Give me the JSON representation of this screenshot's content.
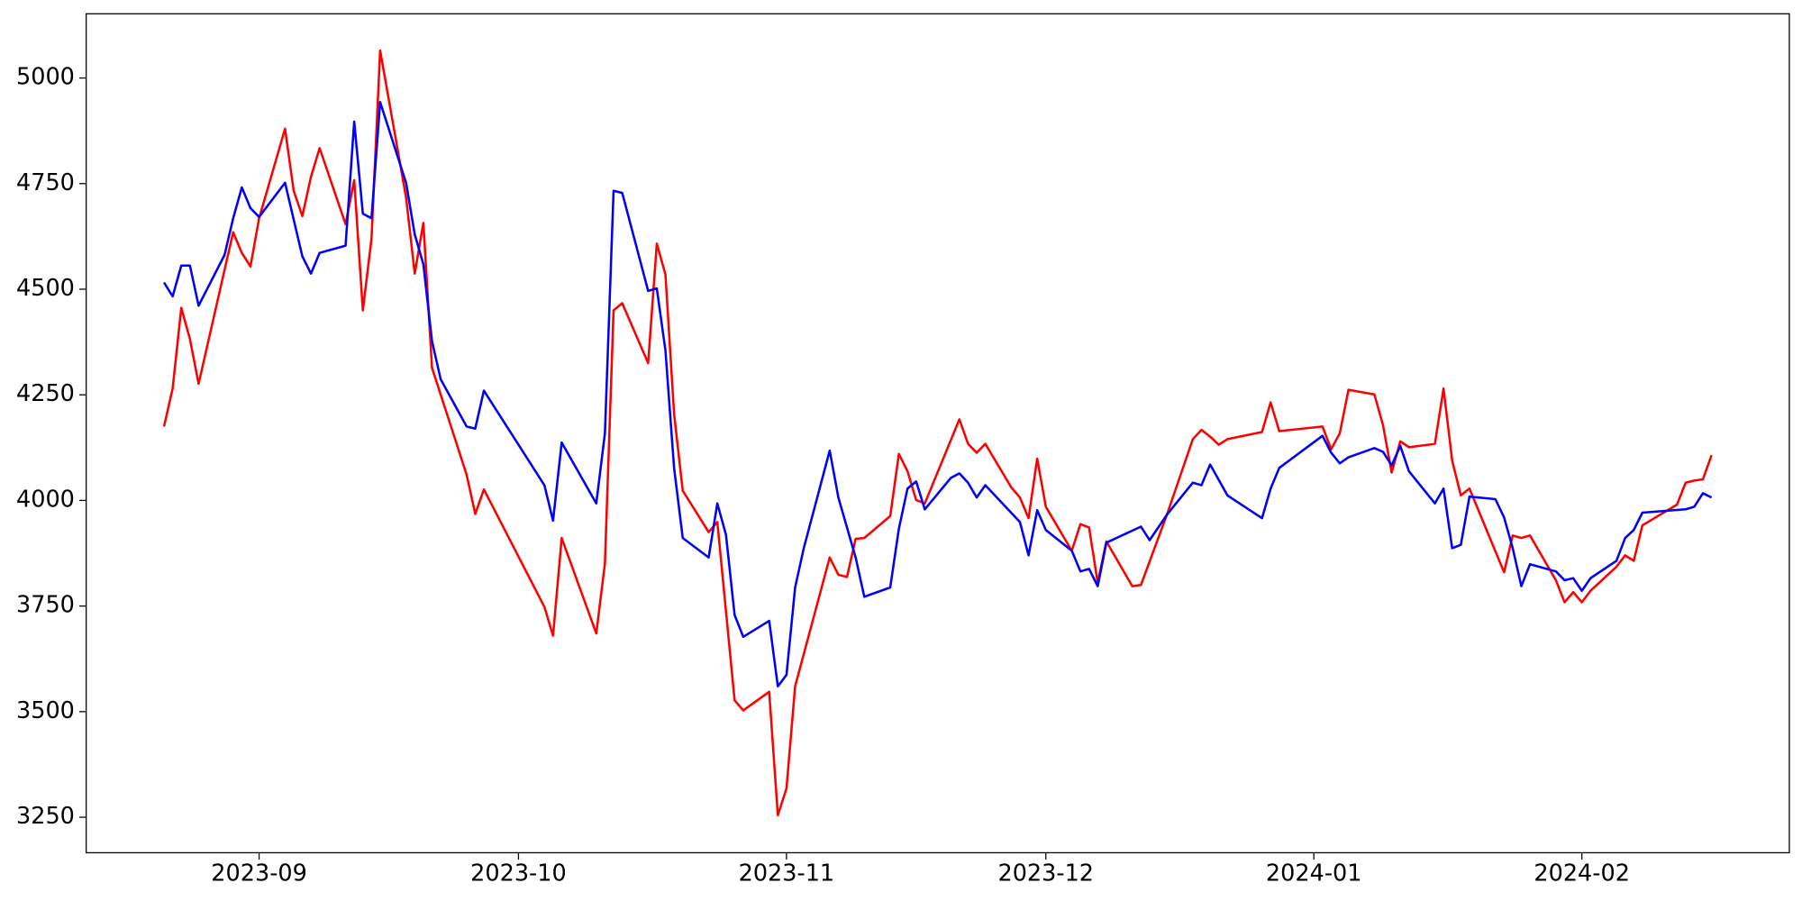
{
  "chart_data": {
    "type": "line",
    "xlim": [
      "2023-08-12",
      "2024-02-25"
    ],
    "xticks": [
      {
        "value": "2023-09-01",
        "label": "2023-09"
      },
      {
        "value": "2023-10-01",
        "label": "2023-10"
      },
      {
        "value": "2023-11-01",
        "label": "2023-11"
      },
      {
        "value": "2023-12-01",
        "label": "2023-12"
      },
      {
        "value": "2024-01-01",
        "label": "2024-01"
      },
      {
        "value": "2024-02-01",
        "label": "2024-02"
      }
    ],
    "ylim": [
      3166,
      5152
    ],
    "yticks": [
      3250,
      3500,
      3750,
      4000,
      4250,
      4500,
      4750,
      5000
    ],
    "grid": false,
    "series": [
      {
        "color": "#ff0000",
        "x": [
          "2023-08-21",
          "2023-08-22",
          "2023-08-23",
          "2023-08-24",
          "2023-08-25",
          "2023-08-29",
          "2023-08-30",
          "2023-08-31",
          "2023-09-01",
          "2023-09-04",
          "2023-09-05",
          "2023-09-06",
          "2023-09-07",
          "2023-09-08",
          "2023-09-11",
          "2023-09-12",
          "2023-09-13",
          "2023-09-14",
          "2023-09-15",
          "2023-09-18",
          "2023-09-19",
          "2023-09-20",
          "2023-09-21",
          "2023-09-25",
          "2023-09-26",
          "2023-09-27",
          "2023-10-04",
          "2023-10-05",
          "2023-10-06",
          "2023-10-10",
          "2023-10-11",
          "2023-10-12",
          "2023-10-13",
          "2023-10-16",
          "2023-10-17",
          "2023-10-18",
          "2023-10-19",
          "2023-10-20",
          "2023-10-23",
          "2023-10-24",
          "2023-10-26",
          "2023-10-27",
          "2023-10-30",
          "2023-10-31",
          "2023-11-01",
          "2023-11-02",
          "2023-11-06",
          "2023-11-07",
          "2023-11-08",
          "2023-11-09",
          "2023-11-10",
          "2023-11-13",
          "2023-11-14",
          "2023-11-15",
          "2023-11-16",
          "2023-11-17",
          "2023-11-21",
          "2023-11-22",
          "2023-11-23",
          "2023-11-24",
          "2023-11-27",
          "2023-11-28",
          "2023-11-29",
          "2023-11-30",
          "2023-12-01",
          "2023-12-04",
          "2023-12-05",
          "2023-12-06",
          "2023-12-07",
          "2023-12-08",
          "2023-12-11",
          "2023-12-12",
          "2023-12-15",
          "2023-12-18",
          "2023-12-19",
          "2023-12-20",
          "2023-12-21",
          "2023-12-22",
          "2023-12-26",
          "2023-12-27",
          "2023-12-28",
          "2024-01-02",
          "2024-01-03",
          "2024-01-04",
          "2024-01-05",
          "2024-01-08",
          "2024-01-09",
          "2024-01-10",
          "2024-01-11",
          "2024-01-12",
          "2024-01-15",
          "2024-01-16",
          "2024-01-17",
          "2024-01-18",
          "2024-01-19",
          "2024-01-23",
          "2024-01-24",
          "2024-01-25",
          "2024-01-26",
          "2024-01-29",
          "2024-01-30",
          "2024-01-31",
          "2024-02-01",
          "2024-02-02",
          "2024-02-05",
          "2024-02-06",
          "2024-02-07",
          "2024-02-08",
          "2024-02-12",
          "2024-02-13",
          "2024-02-14",
          "2024-02-15",
          "2024-02-16"
        ],
        "values": [
          4175,
          4265,
          4456,
          4382,
          4276,
          4635,
          4586,
          4554,
          4668,
          4880,
          4733,
          4673,
          4766,
          4834,
          4654,
          4758,
          4450,
          4619,
          5065,
          4717,
          4537,
          4657,
          4314,
          4061,
          3968,
          4026,
          3748,
          3680,
          3911,
          3685,
          3851,
          4450,
          4467,
          4325,
          4608,
          4535,
          4205,
          4023,
          3925,
          3949,
          3527,
          3503,
          3547,
          3255,
          3318,
          3560,
          3865,
          3824,
          3819,
          3909,
          3911,
          3963,
          4110,
          4069,
          4001,
          3993,
          4192,
          4134,
          4113,
          4134,
          4031,
          4007,
          3958,
          4099,
          3985,
          3881,
          3944,
          3936,
          3805,
          3903,
          3797,
          3800,
          3966,
          4145,
          4167,
          4151,
          4132,
          4145,
          4162,
          4232,
          4164,
          4175,
          4121,
          4159,
          4262,
          4251,
          4178,
          4066,
          4140,
          4126,
          4134,
          4265,
          4094,
          4012,
          4028,
          3830,
          3917,
          3911,
          3917,
          3811,
          3759,
          3783,
          3759,
          3786,
          3843,
          3870,
          3857,
          3941,
          3990,
          4042,
          4047,
          4050,
          4107
        ]
      },
      {
        "color": "#0000ff",
        "x": [
          "2023-08-21",
          "2023-08-22",
          "2023-08-23",
          "2023-08-24",
          "2023-08-25",
          "2023-08-28",
          "2023-08-29",
          "2023-08-30",
          "2023-08-31",
          "2023-09-01",
          "2023-09-04",
          "2023-09-06",
          "2023-09-07",
          "2023-09-08",
          "2023-09-11",
          "2023-09-12",
          "2023-09-13",
          "2023-09-14",
          "2023-09-15",
          "2023-09-18",
          "2023-09-19",
          "2023-09-20",
          "2023-09-21",
          "2023-09-22",
          "2023-09-25",
          "2023-09-26",
          "2023-09-27",
          "2023-10-04",
          "2023-10-05",
          "2023-10-06",
          "2023-10-10",
          "2023-10-11",
          "2023-10-12",
          "2023-10-13",
          "2023-10-16",
          "2023-10-17",
          "2023-10-18",
          "2023-10-19",
          "2023-10-20",
          "2023-10-23",
          "2023-10-24",
          "2023-10-25",
          "2023-10-26",
          "2023-10-27",
          "2023-10-30",
          "2023-10-31",
          "2023-11-01",
          "2023-11-02",
          "2023-11-03",
          "2023-11-06",
          "2023-11-07",
          "2023-11-09",
          "2023-11-10",
          "2023-11-13",
          "2023-11-14",
          "2023-11-15",
          "2023-11-16",
          "2023-11-17",
          "2023-11-20",
          "2023-11-21",
          "2023-11-22",
          "2023-11-23",
          "2023-11-24",
          "2023-11-28",
          "2023-11-29",
          "2023-11-30",
          "2023-12-01",
          "2023-12-04",
          "2023-12-05",
          "2023-12-06",
          "2023-12-07",
          "2023-12-08",
          "2023-12-12",
          "2023-12-13",
          "2023-12-15",
          "2023-12-18",
          "2023-12-19",
          "2023-12-20",
          "2023-12-22",
          "2023-12-26",
          "2023-12-27",
          "2023-12-28",
          "2024-01-02",
          "2024-01-03",
          "2024-01-04",
          "2024-01-05",
          "2024-01-08",
          "2024-01-09",
          "2024-01-10",
          "2024-01-11",
          "2024-01-12",
          "2024-01-15",
          "2024-01-16",
          "2024-01-17",
          "2024-01-18",
          "2024-01-19",
          "2024-01-22",
          "2024-01-23",
          "2024-01-24",
          "2024-01-25",
          "2024-01-26",
          "2024-01-29",
          "2024-01-30",
          "2024-01-31",
          "2024-02-01",
          "2024-02-02",
          "2024-02-05",
          "2024-02-06",
          "2024-02-07",
          "2024-02-08",
          "2024-02-13",
          "2024-02-14",
          "2024-02-15",
          "2024-02-16"
        ],
        "values": [
          4516,
          4483,
          4556,
          4556,
          4461,
          4581,
          4668,
          4741,
          4692,
          4671,
          4752,
          4578,
          4537,
          4586,
          4603,
          4897,
          4679,
          4668,
          4943,
          4752,
          4630,
          4559,
          4377,
          4287,
          4175,
          4170,
          4260,
          4036,
          3952,
          4137,
          3993,
          4159,
          4733,
          4728,
          4496,
          4502,
          4355,
          4077,
          3911,
          3865,
          3993,
          3919,
          3729,
          3677,
          3715,
          3560,
          3587,
          3794,
          3887,
          4118,
          4007,
          3865,
          3772,
          3794,
          3933,
          4028,
          4045,
          3979,
          4053,
          4064,
          4042,
          4007,
          4036,
          3949,
          3870,
          3977,
          3930,
          3881,
          3832,
          3838,
          3797,
          3900,
          3938,
          3906,
          3966,
          4042,
          4036,
          4085,
          4012,
          3958,
          4028,
          4077,
          4153,
          4113,
          4088,
          4102,
          4124,
          4115,
          4083,
          4129,
          4069,
          3993,
          4028,
          3887,
          3895,
          4009,
          4003,
          3960,
          3887,
          3797,
          3849,
          3832,
          3811,
          3816,
          3786,
          3816,
          3857,
          3911,
          3930,
          3971,
          3979,
          3985,
          4017,
          4007
        ]
      }
    ]
  }
}
